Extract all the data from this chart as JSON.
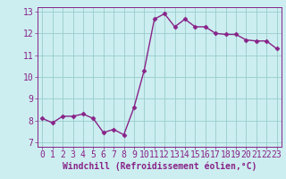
{
  "x": [
    0,
    1,
    2,
    3,
    4,
    5,
    6,
    7,
    8,
    9,
    10,
    11,
    12,
    13,
    14,
    15,
    16,
    17,
    18,
    19,
    20,
    21,
    22,
    23
  ],
  "y": [
    8.1,
    7.9,
    8.2,
    8.2,
    8.3,
    8.1,
    7.45,
    7.6,
    7.35,
    8.6,
    10.3,
    12.65,
    12.9,
    12.3,
    12.65,
    12.3,
    12.3,
    12.0,
    11.95,
    11.95,
    11.7,
    11.65,
    11.65,
    11.3
  ],
  "line_color": "#882288",
  "marker": "D",
  "marker_size": 2.5,
  "bg_color": "#cceef0",
  "grid_color": "#99cccc",
  "xlabel": "Windchill (Refroidissement éolien,°C)",
  "xlim": [
    -0.5,
    23.5
  ],
  "ylim": [
    6.8,
    13.2
  ],
  "yticks": [
    7,
    8,
    9,
    10,
    11,
    12,
    13
  ],
  "xticks": [
    0,
    1,
    2,
    3,
    4,
    5,
    6,
    7,
    8,
    9,
    10,
    11,
    12,
    13,
    14,
    15,
    16,
    17,
    18,
    19,
    20,
    21,
    22,
    23
  ],
  "xlabel_fontsize": 7,
  "tick_fontsize": 7,
  "line_width": 1.0
}
